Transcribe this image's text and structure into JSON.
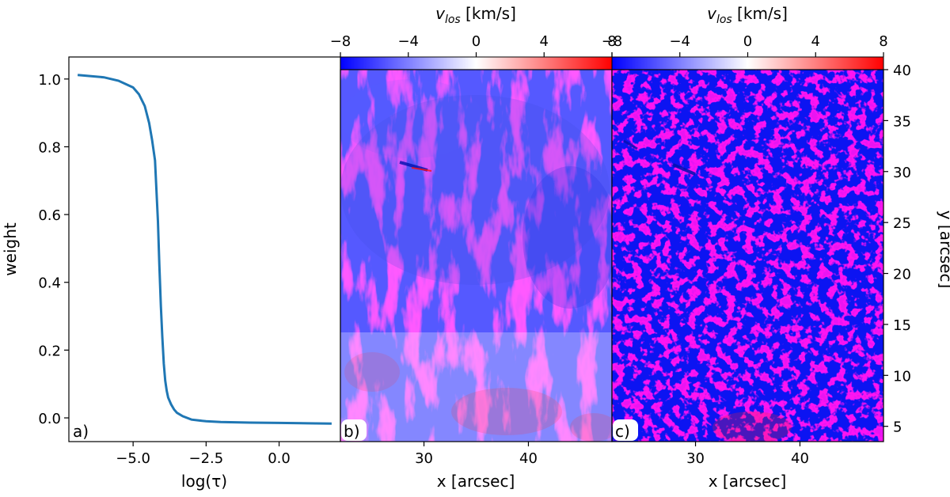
{
  "chart_data": [
    {
      "panel_label": "a)",
      "type": "line",
      "xlabel": "log(τ)",
      "ylabel": "weight",
      "xlim": [
        -7.2,
        2.1
      ],
      "ylim": [
        -0.07,
        1.065
      ],
      "xticks": [
        -5.0,
        -2.5,
        0.0
      ],
      "xtick_labels": [
        "−5.0",
        "−2.5",
        "0.0"
      ],
      "yticks": [
        0.0,
        0.2,
        0.4,
        0.6,
        0.8,
        1.0
      ],
      "ytick_labels": [
        "0.0",
        "0.2",
        "0.4",
        "0.6",
        "0.8",
        "1.0"
      ],
      "series": [
        {
          "name": "weight",
          "color": "#1f77b4",
          "x": [
            -6.9,
            -6.0,
            -5.5,
            -5.0,
            -4.8,
            -4.6,
            -4.45,
            -4.35,
            -4.25,
            -4.15,
            -4.1,
            -4.05,
            -4.0,
            -3.95,
            -3.9,
            -3.85,
            -3.8,
            -3.7,
            -3.6,
            -3.5,
            -3.3,
            -3.0,
            -2.5,
            -2.0,
            -1.0,
            0.0,
            1.0,
            1.8
          ],
          "y": [
            1.012,
            1.005,
            0.995,
            0.975,
            0.955,
            0.92,
            0.87,
            0.82,
            0.76,
            0.58,
            0.45,
            0.33,
            0.24,
            0.16,
            0.11,
            0.08,
            0.06,
            0.04,
            0.025,
            0.015,
            0.005,
            -0.005,
            -0.01,
            -0.012,
            -0.014,
            -0.015,
            -0.016,
            -0.017
          ]
        }
      ]
    },
    {
      "panel_label": "b)",
      "type": "heatmap",
      "colorbar_label": "v",
      "colorbar_label_sub": "los",
      "colorbar_unit": " [km/s]",
      "colorbar_range": [
        -8,
        8
      ],
      "colorbar_ticks": [
        -8,
        -4,
        0,
        4,
        8
      ],
      "colorbar_tick_labels": [
        "−8",
        "−4",
        "0",
        "4",
        "8"
      ],
      "colormap": [
        "#0000ff",
        "#ffffff",
        "#ff0000"
      ],
      "xlabel": "x [arcsec]",
      "xlim": [
        22,
        48
      ],
      "ylim": [
        3.5,
        40
      ],
      "xticks": [
        30,
        40
      ],
      "xtick_labels": [
        "30",
        "40"
      ]
    },
    {
      "panel_label": "c)",
      "type": "heatmap",
      "colorbar_label": "v",
      "colorbar_label_sub": "los",
      "colorbar_unit": " [km/s]",
      "colorbar_range": [
        -8,
        8
      ],
      "colorbar_ticks": [
        -8,
        -4,
        0,
        4,
        8
      ],
      "colorbar_tick_labels": [
        "−8",
        "−4",
        "0",
        "4",
        "8"
      ],
      "colormap": [
        "#0000ff",
        "#ffffff",
        "#ff0000"
      ],
      "xlabel": "x [arcsec]",
      "ylabel": "y [arcsec]",
      "xlim": [
        22,
        48
      ],
      "ylim": [
        3.5,
        40
      ],
      "xticks": [
        30,
        40
      ],
      "xtick_labels": [
        "30",
        "40"
      ],
      "yticks": [
        5,
        10,
        15,
        20,
        25,
        30,
        35,
        40
      ],
      "ytick_labels": [
        "5",
        "10",
        "15",
        "20",
        "25",
        "30",
        "35",
        "40"
      ]
    }
  ]
}
